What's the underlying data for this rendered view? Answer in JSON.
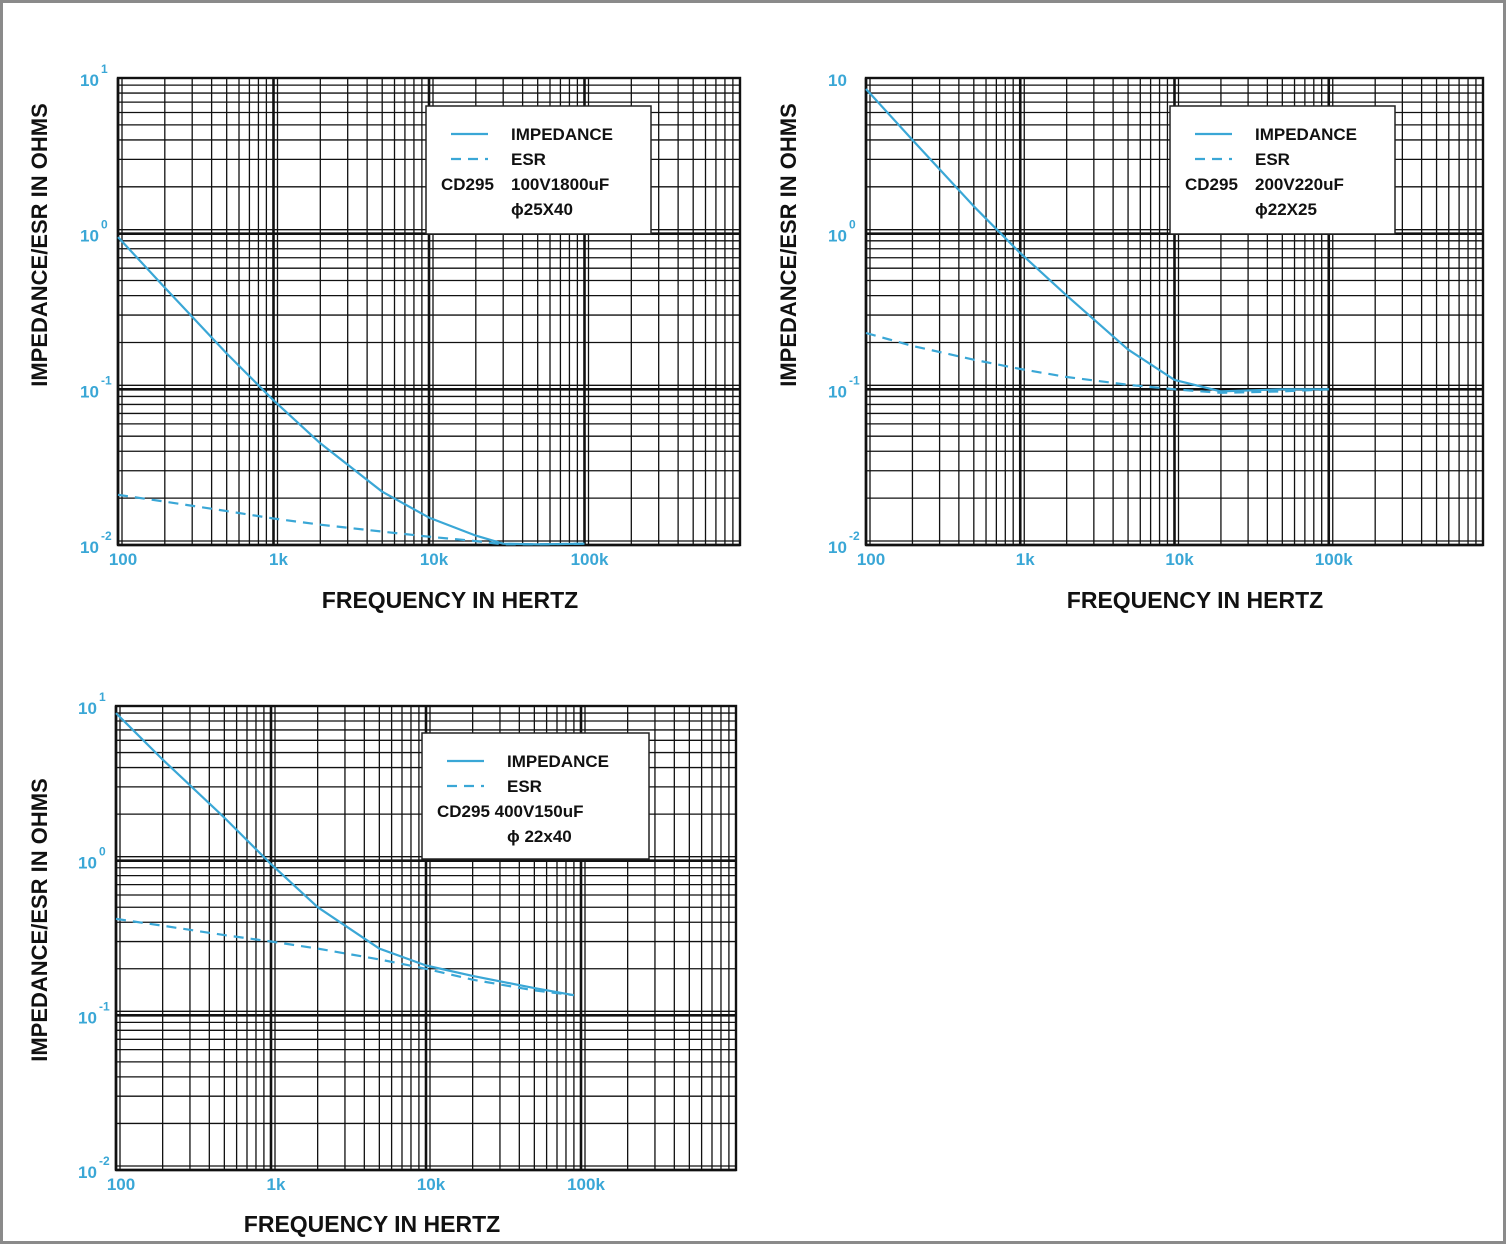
{
  "colors": {
    "curve": "#3aa7d6",
    "grid": "#111111",
    "tick": "#3aa7d6"
  },
  "chart_data": [
    {
      "type": "line",
      "ylabel": "IMPEDANCE/ESR IN OHMS",
      "xlabel": "FREQUENCY IN HERTZ",
      "x_scale": "log",
      "y_scale": "log",
      "xlim": [
        100,
        1000000
      ],
      "ylim": [
        0.01,
        10
      ],
      "x_ticks": [
        "100",
        "1k",
        "10k",
        "100k"
      ],
      "y_ticks": [
        {
          "base": "10",
          "exp": "1"
        },
        {
          "base": "10",
          "exp": "0"
        },
        {
          "base": "10",
          "exp": "-1"
        },
        {
          "base": "10",
          "exp": "-2"
        }
      ],
      "legend": {
        "series": [
          "IMPEDANCE",
          "ESR"
        ],
        "part": "CD295",
        "rating": "100V1800uF",
        "size": "ϕ25X40"
      },
      "series": [
        {
          "name": "IMPEDANCE",
          "style": "solid",
          "x": [
            100,
            200,
            500,
            1000,
            2000,
            5000,
            10000,
            20000,
            30000,
            50000,
            100000
          ],
          "y": [
            0.95,
            0.45,
            0.17,
            0.085,
            0.045,
            0.022,
            0.015,
            0.0115,
            0.0102,
            0.0101,
            0.0102
          ]
        },
        {
          "name": "ESR",
          "style": "dashed",
          "x": [
            100,
            200,
            500,
            1000,
            2000,
            5000,
            10000,
            20000,
            30000,
            50000,
            100000
          ],
          "y": [
            0.021,
            0.019,
            0.0165,
            0.0148,
            0.0135,
            0.0122,
            0.0113,
            0.0106,
            0.0101,
            0.0101,
            0.0102
          ]
        }
      ]
    },
    {
      "type": "line",
      "ylabel": "IMPEDANCE/ESR IN OHMS",
      "xlabel": "FREQUENCY IN HERTZ",
      "x_scale": "log",
      "y_scale": "log",
      "xlim": [
        100,
        1000000
      ],
      "ylim": [
        0.01,
        10
      ],
      "x_ticks": [
        "100",
        "1k",
        "10k",
        "100k"
      ],
      "y_ticks": [
        {
          "base": "10",
          "exp": ""
        },
        {
          "base": "10",
          "exp": "0"
        },
        {
          "base": "10",
          "exp": "-1"
        },
        {
          "base": "10",
          "exp": "-2"
        }
      ],
      "legend": {
        "series": [
          "IMPEDANCE",
          "ESR"
        ],
        "part": "CD295",
        "rating": "200V220uF",
        "size": "ϕ22X25"
      },
      "series": [
        {
          "name": "IMPEDANCE",
          "style": "solid",
          "x": [
            100,
            200,
            500,
            1000,
            2000,
            5000,
            10000,
            20000,
            50000,
            100000
          ],
          "y": [
            8.5,
            4.0,
            1.5,
            0.75,
            0.4,
            0.18,
            0.115,
            0.097,
            0.1,
            0.1
          ]
        },
        {
          "name": "ESR",
          "style": "dashed",
          "x": [
            100,
            200,
            500,
            1000,
            2000,
            5000,
            10000,
            20000,
            50000,
            100000
          ],
          "y": [
            0.23,
            0.19,
            0.155,
            0.135,
            0.12,
            0.107,
            0.1,
            0.095,
            0.097,
            0.1
          ]
        }
      ]
    },
    {
      "type": "line",
      "ylabel": "IMPEDANCE/ESR IN OHMS",
      "xlabel": "FREQUENCY IN HERTZ",
      "x_scale": "log",
      "y_scale": "log",
      "xlim": [
        100,
        1000000
      ],
      "ylim": [
        0.01,
        10
      ],
      "x_ticks": [
        "100",
        "1k",
        "10k",
        "100k"
      ],
      "y_ticks": [
        {
          "base": "10",
          "exp": "1"
        },
        {
          "base": "10",
          "exp": "0"
        },
        {
          "base": "10",
          "exp": "-1"
        },
        {
          "base": "10",
          "exp": "-2"
        }
      ],
      "legend": {
        "series": [
          "IMPEDANCE",
          "ESR"
        ],
        "part": "CD295 400V150uF",
        "rating": "",
        "size": "ϕ 22x40"
      },
      "series": [
        {
          "name": "IMPEDANCE",
          "style": "solid",
          "x": [
            100,
            200,
            500,
            1000,
            2000,
            5000,
            10000,
            20000,
            50000,
            90000
          ],
          "y": [
            9.0,
            4.5,
            1.9,
            0.95,
            0.5,
            0.27,
            0.21,
            0.18,
            0.15,
            0.135
          ]
        },
        {
          "name": "ESR",
          "style": "dashed",
          "x": [
            100,
            200,
            500,
            1000,
            2000,
            5000,
            10000,
            20000,
            50000,
            90000
          ],
          "y": [
            0.42,
            0.38,
            0.33,
            0.3,
            0.27,
            0.23,
            0.2,
            0.17,
            0.145,
            0.135
          ]
        }
      ]
    }
  ]
}
